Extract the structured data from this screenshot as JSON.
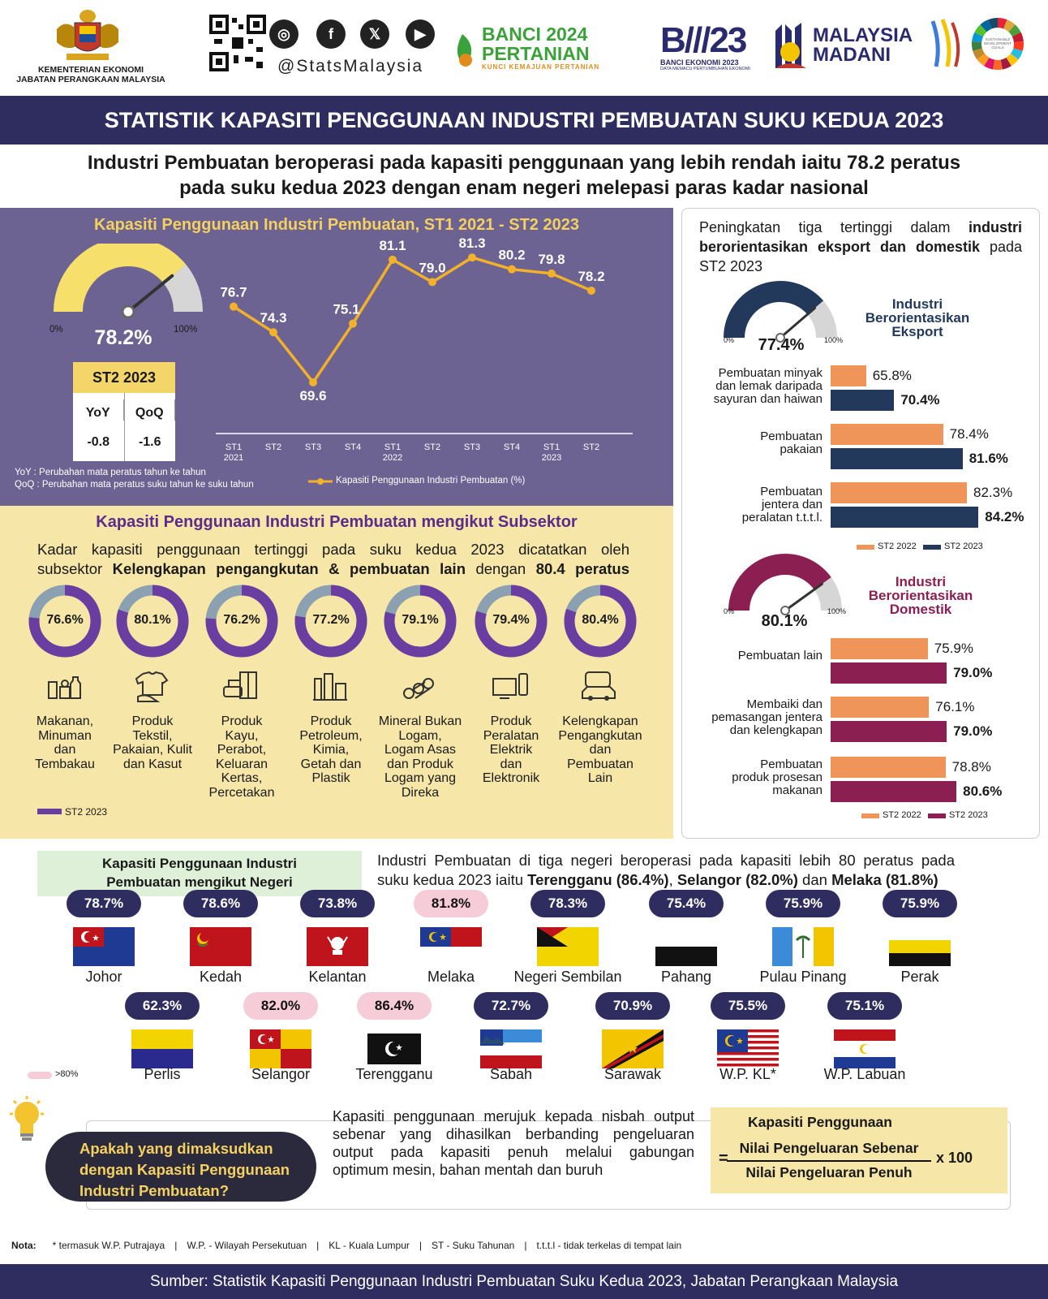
{
  "header": {
    "org_line1": "KEMENTERIAN EKONOMI",
    "org_line2": "JABATAN PERANGKAAN MALAYSIA",
    "social_handle": "@StatsMalaysia",
    "social_icons": [
      "instagram-icon",
      "facebook-icon",
      "x-icon",
      "youtube-icon"
    ],
    "banci_pertanian": {
      "line1": "BANCI 2024",
      "line2": "PERTANIAN",
      "tagline": "KUNCI KEMAJUAN PERTANIAN"
    },
    "banci_ekonomi": {
      "line1": "BANCI EKONOMI 2023",
      "tagline": "DATA MEMACU PERTUMBUHAN EKONOMI"
    },
    "madani": {
      "line1": "MALAYSIA",
      "line2": "MADANI"
    },
    "sdg_label": "SUSTAINABLE DEVELOPMENT GOALS"
  },
  "title": "STATISTIK KAPASITI PENGGUNAAN INDUSTRI PEMBUATAN SUKU KEDUA 2023",
  "headline": {
    "line1": "Industri Pembuatan beroperasi pada kapasiti penggunaan yang lebih rendah iaitu 78.2 peratus",
    "line2": "pada suku kedua 2023 dengan enam negeri melepasi paras kadar nasional"
  },
  "trend": {
    "title": "Kapasiti Penggunaan Industri Pembuatan, ST1 2021 - ST2 2023",
    "gauge_value": "78.2%",
    "gauge_fraction": 0.782,
    "gauge_min": "0%",
    "gauge_max": "100%",
    "box_title": "ST2 2023",
    "yoy_label": "YoY",
    "yoy_value": "-0.8",
    "qoq_label": "QoQ",
    "qoq_value": "-1.6",
    "note_yoy": "YoY  : Perubahan mata peratus tahun ke tahun",
    "note_qoq": "QoQ : Perubahan mata peratus suku tahun ke suku tahun",
    "legend": "Kapasiti Penggunaan Industri Pembuatan (%)",
    "colors": {
      "line": "#f2b12a",
      "panel": "#6c6392",
      "gauge_fill": "#f7df6c",
      "gauge_rest": "#d6d6d6"
    }
  },
  "chart_data": [
    {
      "type": "line",
      "title": "Kapasiti Penggunaan Industri Pembuatan, ST1 2021 - ST2 2023",
      "categories": [
        "ST1 2021",
        "ST2",
        "ST3",
        "ST4",
        "ST1 2022",
        "ST2",
        "ST3",
        "ST4",
        "ST1 2023",
        "ST2"
      ],
      "tick_labels": [
        [
          "ST1",
          "2021"
        ],
        [
          "ST2",
          ""
        ],
        [
          "ST3",
          ""
        ],
        [
          "ST4",
          ""
        ],
        [
          "ST1",
          "2022"
        ],
        [
          "ST2",
          ""
        ],
        [
          "ST3",
          ""
        ],
        [
          "ST4",
          ""
        ],
        [
          "ST1",
          "2023"
        ],
        [
          "ST2",
          ""
        ]
      ],
      "values": [
        76.7,
        74.3,
        69.6,
        75.1,
        81.1,
        79.0,
        81.3,
        80.2,
        79.8,
        78.2
      ],
      "value_labels": [
        "76.7",
        "74.3",
        "69.6",
        "75.1",
        "81.1",
        "79.0",
        "81.3",
        "80.2",
        "79.8",
        "78.2"
      ],
      "series_name": "Kapasiti Penggunaan Industri Pembuatan (%)",
      "ylim": [
        68,
        82
      ],
      "grid": false
    },
    {
      "type": "bar",
      "title": "Peningkatan tiga tertinggi dalam industri berorientasikan eksport",
      "orientation": "horizontal",
      "categories": [
        [
          "Pembuatan minyak",
          "dan lemak daripada",
          "sayuran dan haiwan"
        ],
        [
          "Pembuatan",
          "pakaian"
        ],
        [
          "Pembuatan",
          "jentera dan",
          "peralatan t.t.t.l."
        ]
      ],
      "series": [
        {
          "name": "ST2 2022",
          "values": [
            65.8,
            78.4,
            82.3
          ],
          "labels": [
            "65.8%",
            "78.4%",
            "82.3%"
          ],
          "color": "#f0955a"
        },
        {
          "name": "ST2 2023",
          "values": [
            70.4,
            81.6,
            84.2
          ],
          "labels": [
            "70.4%",
            "81.6%",
            "84.2%"
          ],
          "color": "#22395c"
        }
      ],
      "xlim": [
        60,
        90
      ]
    },
    {
      "type": "bar",
      "title": "Industri Berorientasikan Domestik",
      "orientation": "horizontal",
      "categories": [
        [
          "Pembuatan lain"
        ],
        [
          "Membaiki dan",
          "pemasangan jentera",
          "dan kelengkapan"
        ],
        [
          "Pembuatan",
          "produk prosesan",
          "makanan"
        ]
      ],
      "series": [
        {
          "name": "ST2 2022",
          "values": [
            75.9,
            76.1,
            78.8
          ],
          "labels": [
            "75.9%",
            "76.1%",
            "78.8%"
          ],
          "color": "#f0955a"
        },
        {
          "name": "ST2 2023",
          "values": [
            79.0,
            79.0,
            80.6
          ],
          "labels": [
            "79.0%",
            "79.0%",
            "80.6%"
          ],
          "color": "#8b1f52"
        }
      ],
      "xlim": [
        60,
        90
      ]
    }
  ],
  "subsector": {
    "title": "Kapasiti Penggunaan Industri Pembuatan mengikut Subsektor",
    "desc_line1": "Kadar kapasiti penggunaan tertinggi pada suku kedua 2023 dicatatkan oleh",
    "desc_line2_pre": "subsektor ",
    "desc_line2_bold": "Kelengkapan pengangkutan & pembuatan lain",
    "desc_line2_mid": " dengan ",
    "desc_line2_bold2": "80.4 peratus",
    "legend": "ST2 2023",
    "color": "#6a3ea1",
    "items": [
      {
        "value": 76.6,
        "label": "76.6%",
        "name": [
          "Makanan,",
          "Minuman",
          "dan",
          "Tembakau"
        ],
        "icon": "food-icon"
      },
      {
        "value": 80.1,
        "label": "80.1%",
        "name": [
          "Produk",
          "Tekstil,",
          "Pakaian, Kulit",
          "dan Kasut"
        ],
        "icon": "shirt-icon"
      },
      {
        "value": 76.2,
        "label": "76.2%",
        "name": [
          "Produk",
          "Kayu,",
          "Perabot,",
          "Keluaran",
          "Kertas,",
          "Percetakan"
        ],
        "icon": "furniture-icon"
      },
      {
        "value": 77.2,
        "label": "77.2%",
        "name": [
          "Produk",
          "Petroleum,",
          "Kimia,",
          "Getah dan",
          "Plastik"
        ],
        "icon": "refinery-icon"
      },
      {
        "value": 79.1,
        "label": "79.1%",
        "name": [
          "Mineral Bukan",
          "Logam,",
          "Logam Asas",
          "dan Produk",
          "Logam yang",
          "Direka"
        ],
        "icon": "pipes-icon"
      },
      {
        "value": 79.4,
        "label": "79.4%",
        "name": [
          "Produk",
          "Peralatan",
          "Elektrik",
          "dan",
          "Elektronik"
        ],
        "icon": "electronics-icon"
      },
      {
        "value": 80.4,
        "label": "80.4%",
        "name": [
          "Kelengkapan",
          "Pengangkutan",
          "dan",
          "Pembuatan",
          "Lain"
        ],
        "icon": "vehicle-icon"
      }
    ]
  },
  "orientation": {
    "desc_normal1": "Peningkatan tiga tertinggi dalam ",
    "desc_bold1": "industri",
    "desc_bold2": "berorientasikan eksport dan domestik",
    "desc_normal2": "pada ST2 2023",
    "export": {
      "title": [
        "Industri",
        "Berorientasikan",
        "Eksport"
      ],
      "gauge_value": "77.4%",
      "gauge_fraction": 0.774,
      "color": "#22395c",
      "title_color": "#22395c"
    },
    "domestic": {
      "title": [
        "Industri",
        "Berorientasikan",
        "Domestik"
      ],
      "gauge_value": "80.1%",
      "gauge_fraction": 0.801,
      "color": "#8b1f52",
      "title_color": "#8b1f52"
    },
    "gauge_min": "0%",
    "gauge_max": "100%",
    "legend_2022": "ST2 2022",
    "legend_2023": "ST2 2023"
  },
  "states": {
    "box_title_1": "Kapasiti Penggunaan Industri",
    "box_title_2": "Pembuatan mengikut Negeri",
    "desc_line1": "Industri Pembuatan di tiga negeri beroperasi pada kapasiti lebih 80 peratus pada",
    "desc_line2_pre": "suku kedua 2023 iaitu ",
    "desc_b1": "Terengganu (86.4%)",
    "desc_s1": ", ",
    "desc_b2": "Selangor (82.0%)",
    "desc_s2": " dan ",
    "desc_b3": "Melaka (81.8%)",
    "legend": ">80%",
    "pill_color": "#2f2d5f",
    "pill_highlight": "#f6ccd8",
    "row1": [
      {
        "value": "78.7%",
        "name": "Johor",
        "high": false,
        "flag": "johor"
      },
      {
        "value": "78.6%",
        "name": "Kedah",
        "high": false,
        "flag": "kedah"
      },
      {
        "value": "73.8%",
        "name": "Kelantan",
        "high": false,
        "flag": "kelantan"
      },
      {
        "value": "81.8%",
        "name": "Melaka",
        "high": true,
        "flag": "melaka"
      },
      {
        "value": "78.3%",
        "name": "Negeri Sembilan",
        "high": false,
        "flag": "ns"
      },
      {
        "value": "75.4%",
        "name": "Pahang",
        "high": false,
        "flag": "pahang"
      },
      {
        "value": "75.9%",
        "name": "Pulau Pinang",
        "high": false,
        "flag": "penang"
      },
      {
        "value": "75.9%",
        "name": "Perak",
        "high": false,
        "flag": "perak"
      }
    ],
    "row2": [
      {
        "value": "62.3%",
        "name": "Perlis",
        "high": false,
        "flag": "perlis"
      },
      {
        "value": "82.0%",
        "name": "Selangor",
        "high": true,
        "flag": "selangor"
      },
      {
        "value": "86.4%",
        "name": "Terengganu",
        "high": true,
        "flag": "terengganu"
      },
      {
        "value": "72.7%",
        "name": "Sabah",
        "high": false,
        "flag": "sabah"
      },
      {
        "value": "70.9%",
        "name": "Sarawak",
        "high": false,
        "flag": "sarawak"
      },
      {
        "value": "75.5%",
        "name": "W.P. KL*",
        "high": false,
        "flag": "kl"
      },
      {
        "value": "75.1%",
        "name": "W.P. Labuan",
        "high": false,
        "flag": "labuan"
      }
    ]
  },
  "definition": {
    "question": [
      "Apakah yang dimaksudkan",
      "dengan Kapasiti Penggunaan",
      "Industri Pembuatan?"
    ],
    "text": [
      "Kapasiti penggunaan merujuk kepada nisbah output",
      "sebenar yang dihasilkan berbanding pengeluaran",
      "output pada kapasiti penuh melalui gabungan",
      "optimum mesin, bahan mentah dan buruh"
    ],
    "formula_title": "Kapasiti Penggunaan",
    "numerator": "Nilai Pengeluaran Sebenar",
    "denominator": "Nilai Pengeluaran Penuh",
    "equals": "=",
    "multiplier": "x 100"
  },
  "nota": {
    "label": "Nota:",
    "items": [
      "* termasuk W.P. Putrajaya",
      "W.P. - Wilayah Persekutuan",
      "KL - Kuala Lumpur",
      "ST - Suku Tahunan",
      "t.t.t.l - tidak terkelas di tempat lain"
    ]
  },
  "footer": "Sumber: Statistik Kapasiti Penggunaan Industri Pembuatan Suku Kedua 2023, Jabatan Perangkaan Malaysia"
}
